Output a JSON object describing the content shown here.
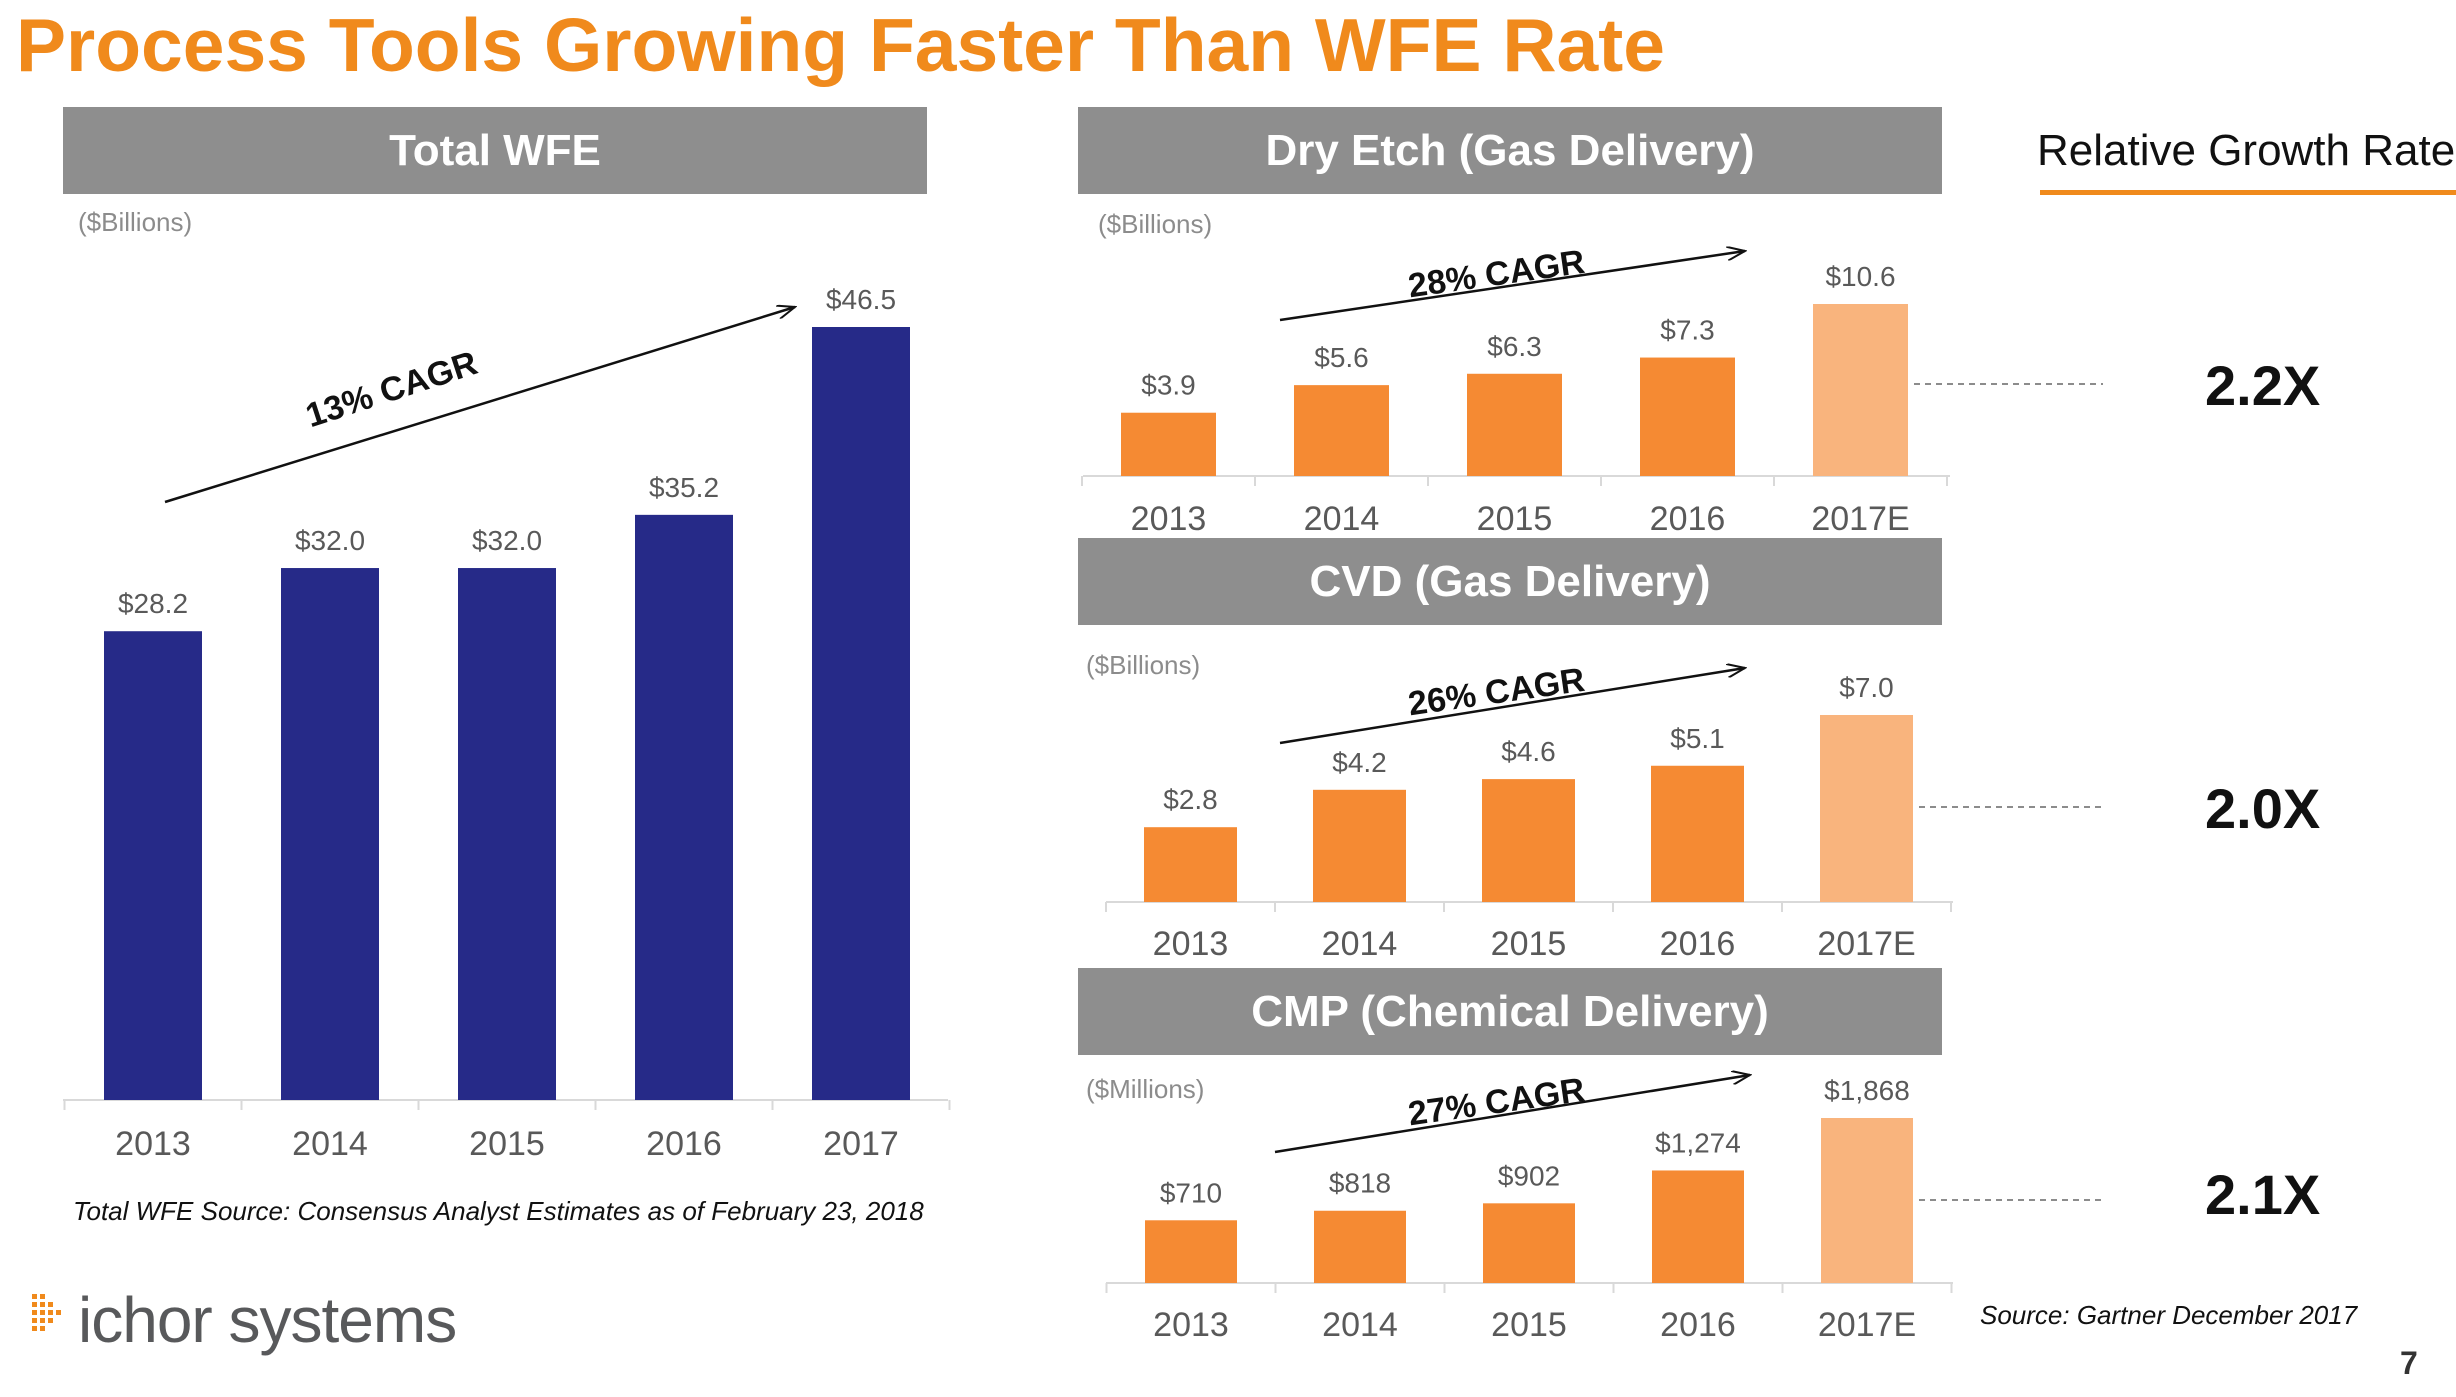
{
  "title": "Process Tools Growing Faster Than WFE Rate",
  "colors": {
    "accent": "#F08A1C",
    "wfe_bar": "#262A88",
    "process_bar": "#F58A33",
    "estimate_bar": "#F9B47D",
    "header_bg": "#8E8E8E"
  },
  "relative_growth": {
    "heading": "Relative Growth Rate",
    "values": [
      "2.2X",
      "2.0X",
      "2.1X"
    ]
  },
  "wfe_source": "Total WFE Source: Consensus Analyst Estimates as of February 23, 2018",
  "gartner_source": "Source: Gartner December 2017",
  "logo_text": "ichor systems",
  "page_number": "7",
  "chart_data": [
    {
      "id": "total-wfe",
      "type": "bar",
      "title": "Total WFE",
      "unit_label": "($Billions)",
      "categories": [
        "2013",
        "2014",
        "2015",
        "2016",
        "2017"
      ],
      "values": [
        28.2,
        32.0,
        32.0,
        35.2,
        46.5
      ],
      "value_labels": [
        "$28.2",
        "$32.0",
        "$32.0",
        "$35.2",
        "$46.5"
      ],
      "estimate_flags": [
        false,
        false,
        false,
        false,
        false
      ],
      "annotation": "13% CAGR",
      "ylim": [
        0,
        46.5
      ]
    },
    {
      "id": "dry-etch",
      "type": "bar",
      "title": "Dry Etch (Gas Delivery)",
      "unit_label": "($Billions)",
      "categories": [
        "2013",
        "2014",
        "2015",
        "2016",
        "2017E"
      ],
      "values": [
        3.9,
        5.6,
        6.3,
        7.3,
        10.6
      ],
      "value_labels": [
        "$3.9",
        "$5.6",
        "$6.3",
        "$7.3",
        "$10.6"
      ],
      "estimate_flags": [
        false,
        false,
        false,
        false,
        true
      ],
      "annotation": "28% CAGR",
      "ylim": [
        0,
        10.6
      ]
    },
    {
      "id": "cvd",
      "type": "bar",
      "title": "CVD (Gas Delivery)",
      "unit_label": "($Billions)",
      "categories": [
        "2013",
        "2014",
        "2015",
        "2016",
        "2017E"
      ],
      "values": [
        2.8,
        4.2,
        4.6,
        5.1,
        7.0
      ],
      "value_labels": [
        "$2.8",
        "$4.2",
        "$4.6",
        "$5.1",
        "$7.0"
      ],
      "estimate_flags": [
        false,
        false,
        false,
        false,
        true
      ],
      "annotation": "26% CAGR",
      "ylim": [
        0,
        7.0
      ]
    },
    {
      "id": "cmp",
      "type": "bar",
      "title": "CMP (Chemical Delivery)",
      "unit_label": "($Millions)",
      "categories": [
        "2013",
        "2014",
        "2015",
        "2016",
        "2017E"
      ],
      "values": [
        710,
        818,
        902,
        1274,
        1868
      ],
      "value_labels": [
        "$710",
        "$818",
        "$902",
        "$1,274",
        "$1,868"
      ],
      "estimate_flags": [
        false,
        false,
        false,
        false,
        true
      ],
      "annotation": "27% CAGR",
      "ylim": [
        0,
        1868
      ]
    }
  ]
}
